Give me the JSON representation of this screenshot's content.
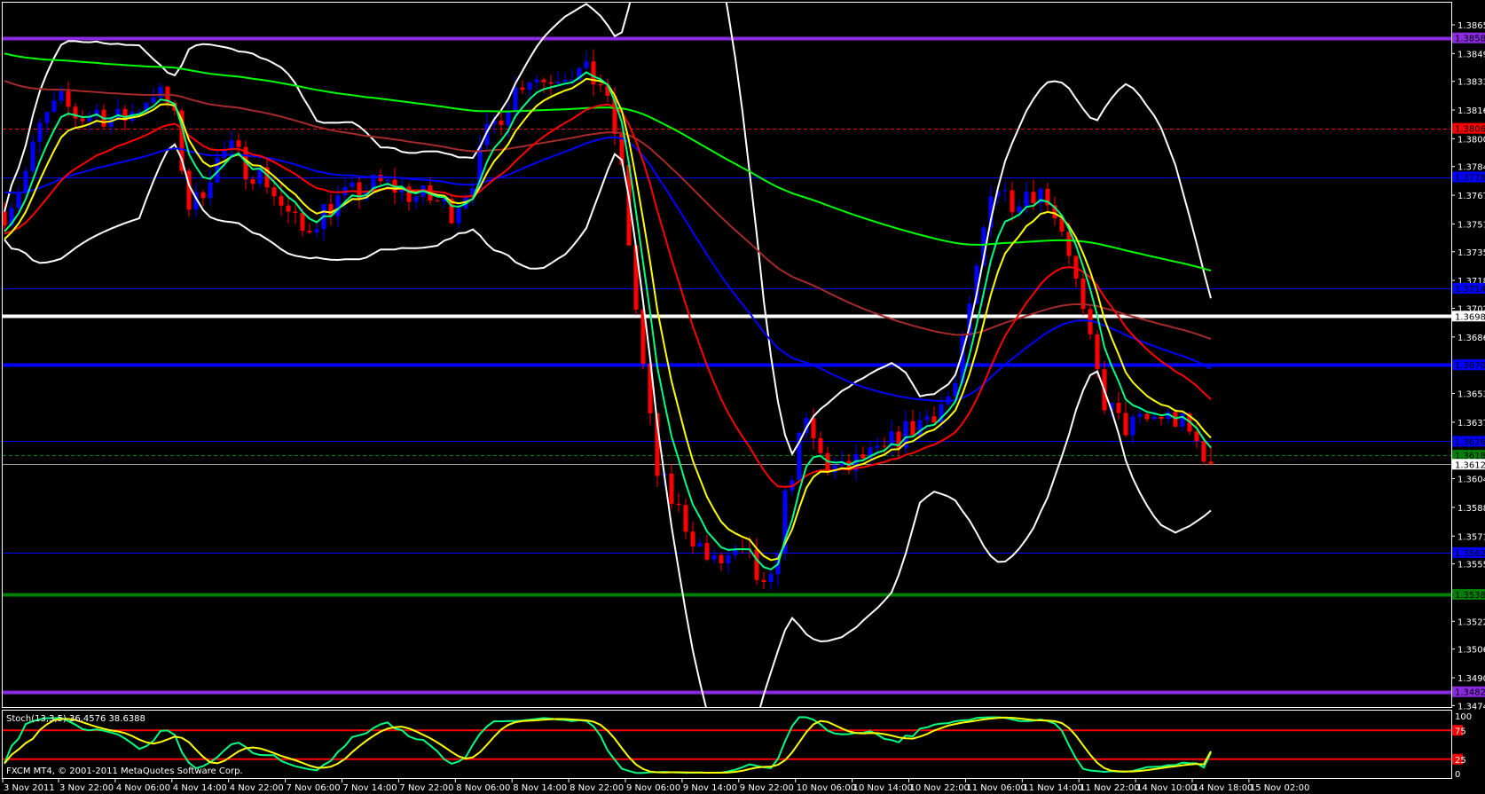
{
  "window": {
    "platform_label": "FXCM MT4, © 2001-2011 MetaQuotes Software Corp."
  },
  "colors": {
    "background": "#000000",
    "bull_candle": "#0000ff",
    "bear_candle": "#ff0000",
    "ma_fast": "#00ff80",
    "ma_8": "#ffff00",
    "ma_21": "#ff0000",
    "ma_55": "#0000ff",
    "ma_100": "#a52a2a",
    "ma_200": "#00ff00",
    "bollinger": "#ffffff",
    "stoch_main": "#00ff80",
    "stoch_signal": "#ffff00",
    "stoch_levels": "#ff0000"
  },
  "chart_data": {
    "type": "candlestick",
    "timeframe": "H1",
    "close_approx": [
      1.3758,
      1.3776,
      1.3809,
      1.3821,
      1.3812,
      1.3816,
      1.381,
      1.3816,
      1.3828,
      1.3818,
      1.3756,
      1.3781,
      1.3795,
      1.3784,
      1.3778,
      1.3759,
      1.3746,
      1.3758,
      1.3765,
      1.3769,
      1.3774,
      1.3772,
      1.3767,
      1.3765,
      1.3759,
      1.3774,
      1.3804,
      1.3821,
      1.3837,
      1.3834,
      1.384,
      1.3838,
      1.3832,
      1.3795,
      1.3692,
      1.3608,
      1.3589,
      1.3571,
      1.3554,
      1.356,
      1.3557,
      1.3533,
      1.3599,
      1.3636,
      1.3613,
      1.3608,
      1.3616,
      1.3617,
      1.3629,
      1.3636,
      1.3645,
      1.3655,
      1.3711,
      1.3776,
      1.3765,
      1.3772,
      1.3767,
      1.3744,
      1.3692,
      1.365,
      1.3634,
      1.3636,
      1.3641,
      1.3638,
      1.3625,
      1.3613
    ],
    "current_price": "1.36128",
    "ylim": [
      1.3474,
      1.38655
    ],
    "y_ticks": [
      "1.38655",
      "1.38490",
      "1.38330",
      "1.38165",
      "1.38000",
      "1.37840",
      "1.37675",
      "1.37510",
      "1.37350",
      "1.37185",
      "1.37025",
      "1.36860",
      "1.36535",
      "1.36370",
      "1.36045",
      "1.35880",
      "1.35715",
      "1.35555",
      "1.35225",
      "1.35065",
      "1.34900",
      "1.34740"
    ],
    "x_ticks": [
      "3 Nov 2011",
      "3 Nov 22:00",
      "4 Nov 06:00",
      "4 Nov 14:00",
      "4 Nov 22:00",
      "7 Nov 06:00",
      "7 Nov 14:00",
      "7 Nov 22:00",
      "8 Nov 06:00",
      "8 Nov 14:00",
      "8 Nov 22:00",
      "9 Nov 06:00",
      "9 Nov 14:00",
      "9 Nov 22:00",
      "10 Nov 06:00",
      "10 Nov 14:00",
      "10 Nov 22:00",
      "11 Nov 06:00",
      "11 Nov 14:00",
      "11 Nov 22:00",
      "14 Nov 10:00",
      "14 Nov 18:00",
      "15 Nov 02:00"
    ],
    "levels": [
      {
        "price": "1.38580",
        "color": "#8a2be2",
        "style": "thick"
      },
      {
        "price": "1.38060",
        "color": "#ff0000",
        "style": "dashed"
      },
      {
        "price": "1.37780",
        "color": "#0000ff",
        "style": "thin"
      },
      {
        "price": "1.37140",
        "color": "#0000ff",
        "style": "thin"
      },
      {
        "price": "1.36980",
        "color": "#ffffff",
        "style": "thick"
      },
      {
        "price": "1.36700",
        "color": "#0000ff",
        "style": "thick"
      },
      {
        "price": "1.36260",
        "color": "#0000ff",
        "style": "thin"
      },
      {
        "price": "1.36180",
        "color": "#008000",
        "style": "dashed"
      },
      {
        "price": "1.36128",
        "color": "#a0a0a0",
        "style": "bid"
      },
      {
        "price": "1.35620",
        "color": "#0000ff",
        "style": "thin"
      },
      {
        "price": "1.35380",
        "color": "#008000",
        "style": "thick"
      },
      {
        "price": "1.34820",
        "color": "#8a2be2",
        "style": "thick"
      }
    ],
    "moving_averages": [
      5,
      8,
      21,
      55,
      100,
      200
    ],
    "bollinger": {
      "period": 20,
      "deviation": 2
    },
    "stochastic": {
      "label": "Stoch(13,3,5) 36.4576 38.6388",
      "main": 36.4576,
      "signal": 38.6388,
      "ylim": [
        0,
        100
      ],
      "axis_labels": [
        "100",
        "75",
        "25",
        "0"
      ],
      "levels": [
        75,
        25
      ]
    }
  }
}
